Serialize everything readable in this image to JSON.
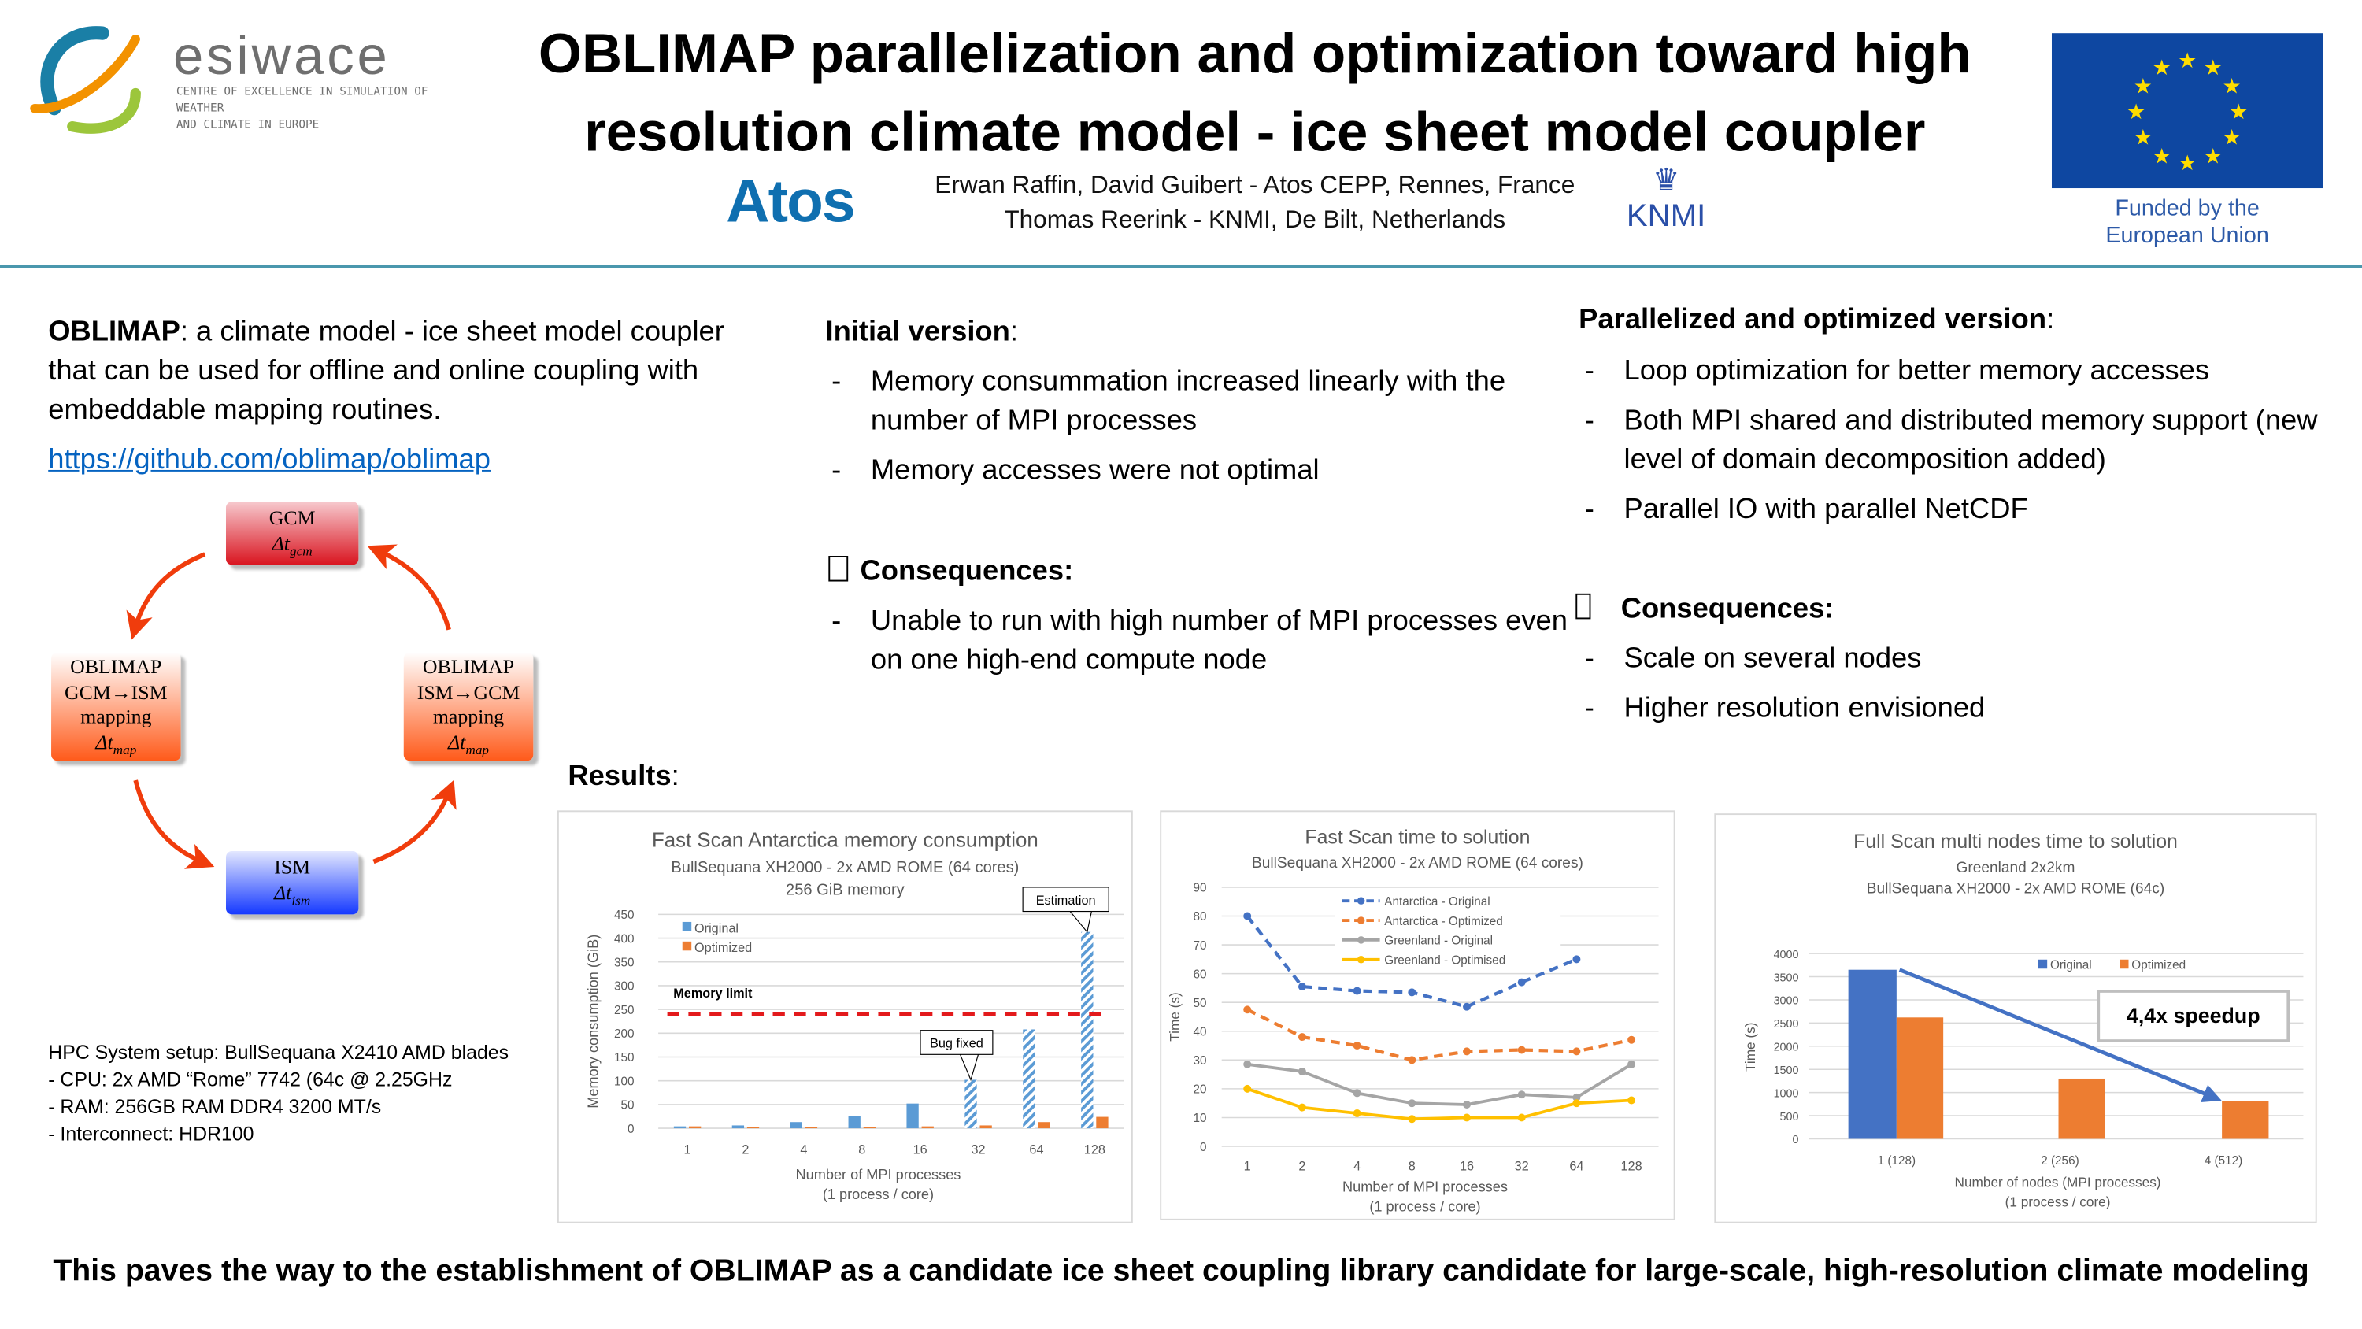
{
  "header": {
    "logo_esiwace": {
      "name": "esiwace",
      "tagline_1": "CENTRE OF EXCELLENCE IN SIMULATION OF WEATHER",
      "tagline_2": "AND CLIMATE IN EUROPE"
    },
    "title_line1": "OBLIMAP parallelization and optimization toward high",
    "title_line2": "resolution climate model - ice sheet model coupler",
    "atos_logo": "Atos",
    "authors_line1": "Erwan Raffin, David Guibert - Atos CEPP, Rennes, France",
    "authors_line2": "Thomas Reerink - KNMI, De Bilt, Netherlands",
    "knmi_logo": "KNMI",
    "eu_line1": "Funded by the",
    "eu_line2": "European Union",
    "accent": "#4a97ad"
  },
  "left": {
    "intro_bold": "OBLIMAP",
    "intro_rest": ": a climate model - ice sheet model coupler that can be used for offline and online coupling with embeddable mapping routines.",
    "link": "https://github.com/oblimap/oblimap",
    "diagram": {
      "gcm": [
        "GCM",
        "Δt",
        "gcm"
      ],
      "map_left": [
        "OBLIMAP",
        "GCM→ISM",
        "mapping",
        "Δt",
        "map"
      ],
      "map_right": [
        "OBLIMAP",
        "ISM→GCM",
        "mapping",
        "Δt",
        "map"
      ],
      "ism": [
        "ISM",
        "Δt",
        "ism"
      ]
    },
    "hpc": [
      "HPC System setup: BullSequana X2410 AMD blades",
      "- CPU: 2x AMD “Rome” 7742 (64c @ 2.25GHz",
      "- RAM: 256GB RAM DDR4 3200 MT/s",
      "- Interconnect: HDR100"
    ]
  },
  "initial": {
    "heading": "Initial version",
    "colon": ":",
    "bullets": [
      "Memory consummation increased linearly with the number of MPI processes",
      "Memory accesses were not optimal"
    ],
    "consequences_marker": "",
    "consequences": "Consequences:",
    "cons_bullets": [
      "Unable to run with high number of MPI processes even on one high-end compute node"
    ]
  },
  "optimized": {
    "heading": "Parallelized and optimized version",
    "colon": ":",
    "bullets": [
      "Loop optimization for better memory accesses",
      "Both MPI shared and distributed memory support (new level of domain decomposition added)",
      "Parallel IO with parallel NetCDF"
    ],
    "consequences_marker": "",
    "consequences": "Consequences:",
    "cons_bullets": [
      "Scale on several nodes",
      "Higher resolution envisioned"
    ]
  },
  "results": {
    "label": "Results",
    "colon": ":"
  },
  "footer": "This paves the way to the establishment of OBLIMAP as a candidate ice sheet coupling library candidate for large-scale, high-resolution climate modeling",
  "chart_data": [
    {
      "type": "bar",
      "title": "Fast Scan Antarctica memory consumption",
      "subtitle1": "BullSequana XH2000 - 2x AMD ROME (64 cores)",
      "subtitle2": "256 GiB memory",
      "xlabel1": "Number of MPI processes",
      "xlabel2": "(1 process / core)",
      "ylabel": "Memory consumption (GiB)",
      "ylim": [
        0,
        450
      ],
      "ystep": 50,
      "categories": [
        "1",
        "2",
        "4",
        "8",
        "16",
        "32",
        "64",
        "128"
      ],
      "series": [
        {
          "name": "Original",
          "color": "#5b9bd5",
          "values": [
            4,
            6,
            13,
            26,
            52,
            102,
            208,
            413
          ],
          "hatched": [
            false,
            false,
            false,
            false,
            false,
            true,
            true,
            true
          ]
        },
        {
          "name": "Optimized",
          "color": "#ed7d31",
          "values": [
            4,
            2,
            2,
            2,
            4,
            6,
            13,
            24
          ]
        }
      ],
      "memory_limit": {
        "label": "Memory limit",
        "value": 240,
        "color": "#e31a1c"
      },
      "annotations": [
        {
          "text": "Bug fixed",
          "category": "32"
        },
        {
          "text": "Estimation",
          "category": "128"
        }
      ],
      "legend": "top-left",
      "grid": true
    },
    {
      "type": "line",
      "title": "Fast Scan time to solution",
      "subtitle1": "BullSequana XH2000 - 2x AMD ROME (64 cores)",
      "xlabel1": "Number of MPI processes",
      "xlabel2": "(1 process / core)",
      "ylabel": "Time (s)",
      "ylim": [
        0,
        90
      ],
      "ystep": 10,
      "categories": [
        "1",
        "2",
        "4",
        "8",
        "16",
        "32",
        "64",
        "128"
      ],
      "series": [
        {
          "name": "Antarctica - Original",
          "color": "#4472c4",
          "dashed": true,
          "values": [
            80,
            55.5,
            54,
            53.5,
            48.5,
            57,
            65,
            null
          ]
        },
        {
          "name": "Antarctica - Optimized",
          "color": "#ed7d31",
          "dashed": true,
          "values": [
            47.5,
            38,
            35,
            30,
            33,
            33.5,
            33,
            37
          ]
        },
        {
          "name": "Greenland - Original",
          "color": "#a5a5a5",
          "dashed": false,
          "values": [
            28.5,
            26,
            18.5,
            15,
            14.5,
            18,
            17,
            28.5
          ]
        },
        {
          "name": "Greenland - Optimised",
          "color": "#ffc000",
          "dashed": false,
          "values": [
            20,
            13.5,
            11.5,
            9.5,
            10,
            10,
            15,
            16
          ]
        }
      ],
      "legend": "top-center",
      "grid": true
    },
    {
      "type": "bar",
      "title": "Full Scan multi nodes time to solution",
      "subtitle1": "Greenland 2x2km",
      "subtitle2": "BullSequana XH2000 - 2x AMD ROME (64c)",
      "xlabel1": "Number of nodes (MPI processes)",
      "xlabel2": "(1 process / core)",
      "ylabel": "Time (s)",
      "ylim": [
        0,
        4000
      ],
      "ystep": 500,
      "categories": [
        "1 (128)",
        "2 (256)",
        "4 (512)"
      ],
      "series": [
        {
          "name": "Original",
          "color": "#4472c4",
          "values": [
            3650,
            null,
            null
          ]
        },
        {
          "name": "Optimized",
          "color": "#ed7d31",
          "values": [
            2620,
            1300,
            820
          ]
        }
      ],
      "annotation": "4,4x speedup",
      "legend": "top-right",
      "grid": true
    }
  ]
}
